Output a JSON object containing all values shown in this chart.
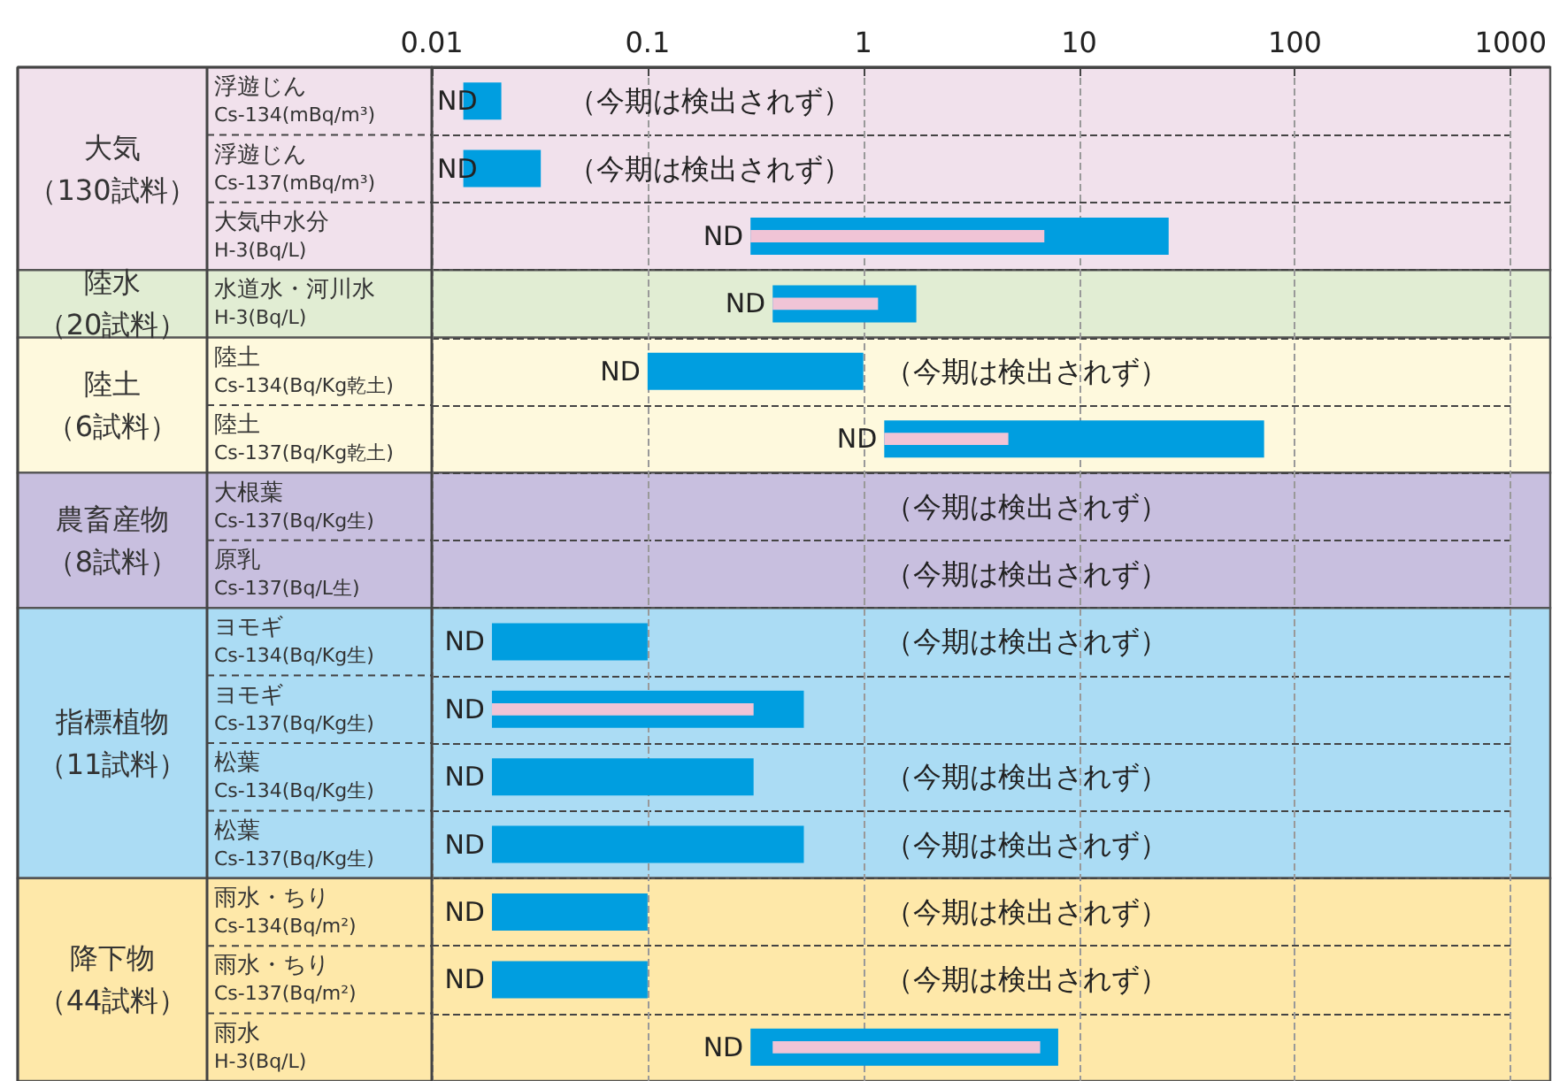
{
  "chart_data": {
    "type": "bar",
    "orientation": "horizontal",
    "log": "x",
    "grid": true,
    "categories": [
      "浮遊じん\nCs-134(mBq/m³)",
      "浮遊じん\nCs-137(mBq/m³)",
      "大気中水分\nH-3(Bq/L)",
      "水道水・河川水\nH-3(Bq/L)",
      "陸土\nCs-134(Bq/Kg乾土)",
      "陸土\nCs-137(Bq/Kg乾土)",
      "大根葉\nCs-137(Bq/Kg生)",
      "原乳\nCs-137(Bq/L生)",
      "ヨモギ\nCs-134(Bq/Kg生)",
      "ヨモギ\nCs-137(Bq/Kg生)",
      "松葉\nCs-134(Bq/Kg生)",
      "松葉\nCs-137(Bq/Kg生)",
      "雨水・ちり\nCs-134(Bq/m²)",
      "雨水・ちり\nCs-137(Bq/m²)",
      "雨水\nH-3(Bq/L)"
    ],
    "series": [
      {
        "color": "#009ee0",
        "base": [
          0.014,
          0.014,
          0.3,
          0.38,
          0.1,
          1.25,
          null,
          null,
          0.019,
          0.019,
          0.019,
          0.019,
          0.019,
          0.019,
          0.3
        ],
        "values": [
          0.007,
          0.018,
          25.7,
          1.38,
          0.9,
          70.75,
          null,
          null,
          0.081,
          0.511,
          0.291,
          0.511,
          0.081,
          0.081,
          7.7
        ]
      },
      {
        "color": "#f0c4d6",
        "base": [
          null,
          null,
          0.3,
          0.38,
          null,
          1.25,
          null,
          null,
          null,
          0.019,
          null,
          null,
          null,
          null,
          0.38
        ],
        "values": [
          null,
          null,
          6.6,
          0.79,
          null,
          3.45,
          null,
          null,
          null,
          0.291,
          null,
          null,
          null,
          null,
          6.22
        ],
        "value_labels": [
          "（今期は検出されず）",
          "（今期は検出されず）",
          null,
          null,
          "（今期は検出されず）",
          null,
          "（今期は検出されず）",
          "（今期は検出されず）",
          "（今期は検出されず）",
          null,
          "（今期は検出されず）",
          "（今期は検出されず）",
          "（今期は検出されず）",
          "（今期は検出されず）",
          null
        ]
      }
    ],
    "xlim": [
      0.01,
      1000
    ],
    "xticks": [
      0.01,
      0.1,
      1,
      10,
      100,
      1000
    ],
    "bands": [
      {
        "axis": "y",
        "from": "浮遊じん\nCs-134(mBq/m³)",
        "to": "大気中水分\nH-3(Bq/L)",
        "label": "大気（130試料）",
        "color": "#f1e1ec"
      },
      {
        "axis": "y",
        "from": "水道水・河川水\nH-3(Bq/L)",
        "to": "水道水・河川水\nH-3(Bq/L)",
        "label": "陸水（20試料）",
        "color": "#e1edd3"
      },
      {
        "axis": "y",
        "from": "陸土\nCs-134(Bq/Kg乾土)",
        "to": "陸土\nCs-137(Bq/Kg乾土)",
        "label": "陸土（6試料）",
        "color": "#fef9dd"
      },
      {
        "axis": "y",
        "from": "大根葉\nCs-137(Bq/Kg生)",
        "to": "原乳\nCs-137(Bq/L生)",
        "label": "農畜産物（8試料）",
        "color": "#c8bfdf"
      },
      {
        "axis": "y",
        "from": "ヨモギ\nCs-134(Bq/Kg生)",
        "to": "松葉\nCs-137(Bq/Kg生)",
        "label": "指標植物（11試料）",
        "color": "#abdcf4"
      },
      {
        "axis": "y",
        "from": "雨水・ちり\nCs-134(Bq/m²)",
        "to": "雨水\nH-3(Bq/L)",
        "label": "降下物（44試料）",
        "color": "#fee8a9"
      }
    ],
    "annotations": [
      {
        "text": "ND",
        "x": 0.014,
        "y": "浮遊じん\nCs-134(mBq/m³)"
      },
      {
        "text": "ND",
        "x": 0.014,
        "y": "浮遊じん\nCs-137(mBq/m³)"
      },
      {
        "text": "ND",
        "x": 0.3,
        "y": "大気中水分\nH-3(Bq/L)"
      },
      {
        "text": "ND",
        "x": 0.38,
        "y": "水道水・河川水\nH-3(Bq/L)"
      },
      {
        "text": "ND",
        "x": 0.1,
        "y": "陸土\nCs-134(Bq/Kg乾土)"
      },
      {
        "text": "ND",
        "x": 1.25,
        "y": "陸土\nCs-137(Bq/Kg乾土)"
      },
      {
        "text": "ND",
        "x": 0.019,
        "y": "ヨモギ\nCs-134(Bq/Kg生)"
      },
      {
        "text": "ND",
        "x": 0.019,
        "y": "ヨモギ\nCs-137(Bq/Kg生)"
      },
      {
        "text": "ND",
        "x": 0.019,
        "y": "松葉\nCs-134(Bq/Kg生)"
      },
      {
        "text": "ND",
        "x": 0.019,
        "y": "松葉\nCs-137(Bq/Kg生)"
      },
      {
        "text": "ND",
        "x": 0.019,
        "y": "雨水・ちり\nCs-134(Bq/m²)"
      },
      {
        "text": "ND",
        "x": 0.019,
        "y": "雨水・ちり\nCs-137(Bq/m²)"
      },
      {
        "text": "ND",
        "x": 0.3,
        "y": "雨水\nH-3(Bq/L)"
      }
    ]
  }
}
